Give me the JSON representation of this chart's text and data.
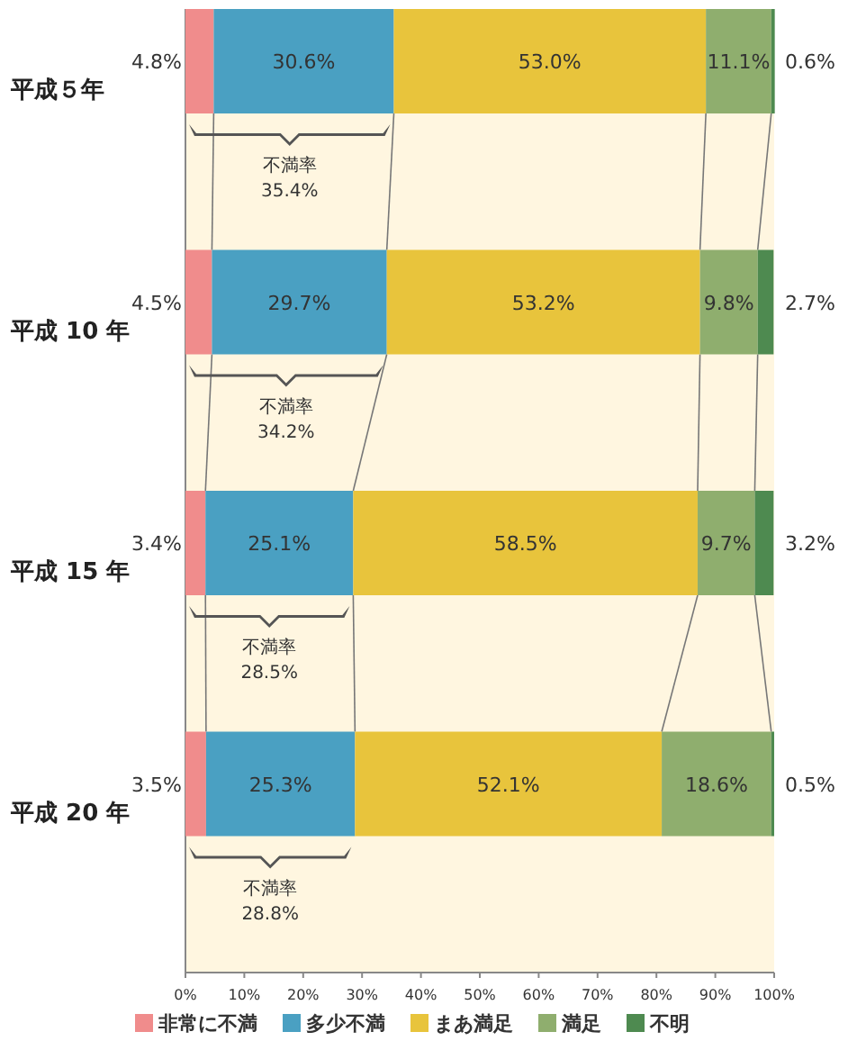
{
  "chart_data": {
    "type": "bar",
    "orientation": "horizontal",
    "stacked": true,
    "categories": [
      "平成５年",
      "平成 10 年",
      "平成 15 年",
      "平成 20 年"
    ],
    "series": [
      {
        "name": "非常に不満",
        "color": "#f08c8c",
        "values": [
          4.8,
          4.5,
          3.4,
          3.5
        ],
        "value_labels": [
          "4.8%",
          "4.5%",
          "3.4%",
          "3.5%"
        ]
      },
      {
        "name": "多少不満",
        "color": "#4aa0c2",
        "values": [
          30.6,
          29.7,
          25.1,
          25.3
        ],
        "value_labels": [
          "30.6%",
          "29.7%",
          "25.1%",
          "25.3%"
        ]
      },
      {
        "name": "まあ満足",
        "color": "#e8c43c",
        "values": [
          53.0,
          53.2,
          58.5,
          52.1
        ],
        "value_labels": [
          "53.0%",
          "53.2%",
          "58.5%",
          "52.1%"
        ]
      },
      {
        "name": "満足",
        "color": "#8fae6e",
        "values": [
          11.1,
          9.8,
          9.7,
          18.6
        ],
        "value_labels": [
          "11.1%",
          "9.8%",
          "9.7%",
          "18.6%"
        ]
      },
      {
        "name": "不明",
        "color": "#4e8a50",
        "values": [
          0.6,
          2.7,
          3.2,
          0.5
        ],
        "value_labels": [
          "0.6%",
          "2.7%",
          "3.2%",
          "0.5%"
        ]
      }
    ],
    "annotations": [
      "不満率\n35.4%",
      "不満率\n34.2%",
      "不満率\n28.5%",
      "不満率\n28.8%"
    ],
    "xlim": [
      0,
      100
    ],
    "xticks": [
      {
        "value": 0,
        "label": "0%"
      },
      {
        "value": 10,
        "label": "10%"
      },
      {
        "value": 20,
        "label": "20%"
      },
      {
        "value": 30,
        "label": "30%"
      },
      {
        "value": 40,
        "label": "40%"
      },
      {
        "value": 50,
        "label": "50%"
      },
      {
        "value": 60,
        "label": "60%"
      },
      {
        "value": 70,
        "label": "70%"
      },
      {
        "value": 80,
        "label": "80%"
      },
      {
        "value": 90,
        "label": "90%"
      },
      {
        "value": 100,
        "label": "100%"
      }
    ],
    "legend": "bottom"
  }
}
